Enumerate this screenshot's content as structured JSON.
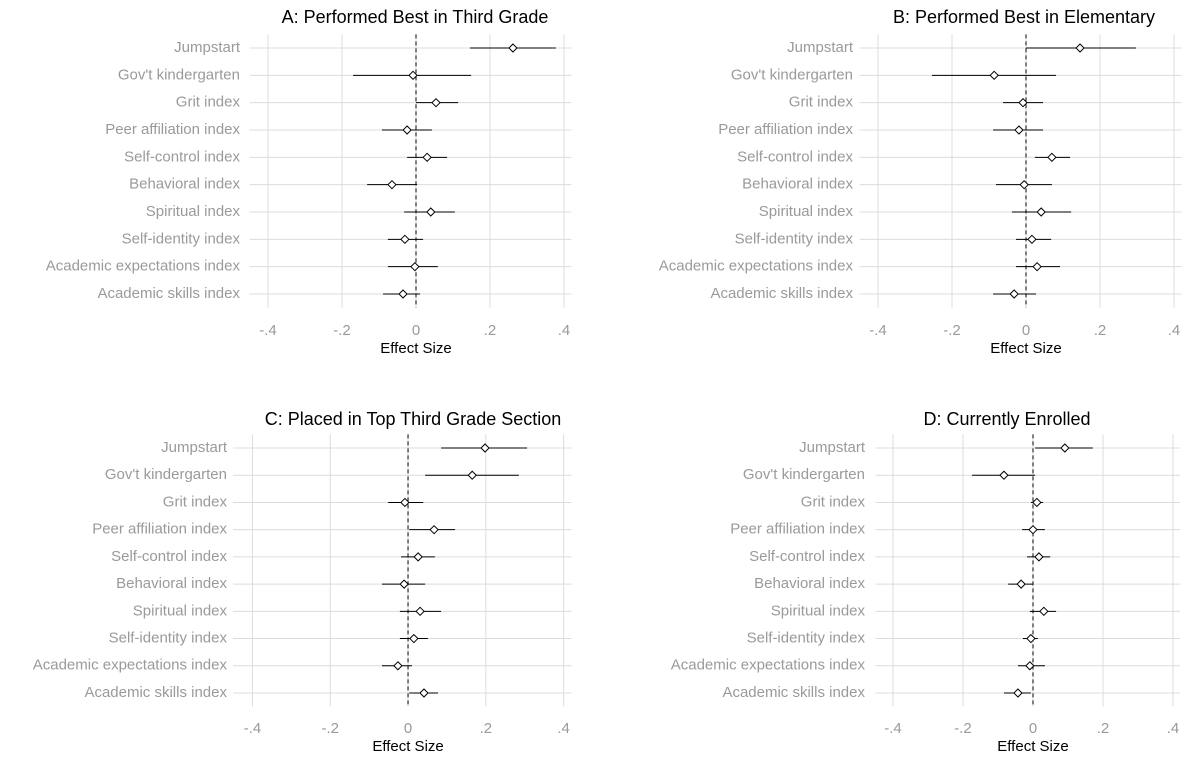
{
  "chart_data": [
    {
      "type": "coefplot",
      "title": "A: Performed Best in Third Grade",
      "xlabel": "Effect Size",
      "categories": [
        "Jumpstart",
        "Gov't kindergarten",
        "Grit index",
        "Peer affiliation index",
        "Self-control index",
        "Behavioral index",
        "Spiritual index",
        "Self-identity index",
        "Academic expectations index",
        "Academic skills index"
      ],
      "values": [
        0.262,
        -0.008,
        0.054,
        -0.024,
        0.03,
        -0.065,
        0.04,
        -0.03,
        -0.003,
        -0.035
      ],
      "lower": [
        0.146,
        -0.17,
        0.0,
        -0.092,
        -0.024,
        -0.132,
        -0.032,
        -0.076,
        -0.076,
        -0.089
      ],
      "upper": [
        0.378,
        0.149,
        0.114,
        0.043,
        0.084,
        0.003,
        0.105,
        0.019,
        0.059,
        0.011
      ],
      "xlim": [
        -0.45,
        0.42
      ],
      "xticks": [
        {
          "value": -0.4,
          "label": "-.4"
        },
        {
          "value": -0.2,
          "label": "-.2"
        },
        0,
        {
          "value": 0.2,
          "label": ".2"
        },
        {
          "value": 0.4,
          "label": ".4"
        }
      ],
      "refline": 0,
      "grid": true,
      "color": "#000000"
    },
    {
      "type": "coefplot",
      "title": "B: Performed Best in Elementary",
      "xlabel": "Effect Size",
      "categories": [
        "Jumpstart",
        "Gov't kindergarten",
        "Grit index",
        "Peer affiliation index",
        "Self-control index",
        "Behavioral index",
        "Spiritual index",
        "Self-identity index",
        "Academic expectations index",
        "Academic skills index"
      ],
      "values": [
        0.146,
        -0.086,
        -0.008,
        -0.019,
        0.07,
        -0.005,
        0.041,
        0.016,
        0.03,
        -0.032
      ],
      "lower": [
        0.0,
        -0.254,
        -0.062,
        -0.089,
        0.024,
        -0.081,
        -0.038,
        -0.027,
        -0.027,
        -0.089
      ],
      "upper": [
        0.297,
        0.081,
        0.046,
        0.046,
        0.119,
        0.07,
        0.122,
        0.068,
        0.092,
        0.027
      ],
      "xlim": [
        -0.45,
        0.42
      ],
      "xticks": [
        {
          "value": -0.4,
          "label": "-.4"
        },
        {
          "value": -0.2,
          "label": "-.2"
        },
        0,
        {
          "value": 0.2,
          "label": ".2"
        },
        {
          "value": 0.4,
          "label": ".4"
        }
      ],
      "refline": 0,
      "grid": true,
      "color": "#000000"
    },
    {
      "type": "coefplot",
      "title": "C: Placed in Top Third Grade Section",
      "xlabel": "Effect Size",
      "categories": [
        "Jumpstart",
        "Gov't kindergarten",
        "Grit index",
        "Peer affiliation index",
        "Self-control index",
        "Behavioral index",
        "Spiritual index",
        "Self-identity index",
        "Academic expectations index",
        "Academic skills index"
      ],
      "values": [
        0.198,
        0.165,
        -0.008,
        0.067,
        0.026,
        -0.01,
        0.031,
        0.015,
        -0.026,
        0.041
      ],
      "lower": [
        0.085,
        0.044,
        -0.051,
        0.003,
        -0.018,
        -0.067,
        -0.021,
        -0.021,
        -0.067,
        0.003
      ],
      "upper": [
        0.306,
        0.285,
        0.039,
        0.121,
        0.069,
        0.044,
        0.085,
        0.051,
        0.01,
        0.077
      ],
      "xlim": [
        -0.45,
        0.42
      ],
      "xticks": [
        {
          "value": -0.4,
          "label": "-.4"
        },
        {
          "value": -0.2,
          "label": "-.2"
        },
        0,
        {
          "value": 0.2,
          "label": ".2"
        },
        {
          "value": 0.4,
          "label": ".4"
        }
      ],
      "refline": 0,
      "grid": true,
      "color": "#000000"
    },
    {
      "type": "coefplot",
      "title": "D: Currently Enrolled",
      "xlabel": "Effect Size",
      "categories": [
        "Jumpstart",
        "Gov't kindergarten",
        "Grit index",
        "Peer affiliation index",
        "Self-control index",
        "Behavioral index",
        "Spiritual index",
        "Self-identity index",
        "Academic expectations index",
        "Academic skills index"
      ],
      "values": [
        0.091,
        -0.083,
        0.011,
        0.0,
        0.017,
        -0.034,
        0.031,
        -0.006,
        -0.009,
        -0.043
      ],
      "lower": [
        0.006,
        -0.174,
        -0.006,
        -0.031,
        -0.017,
        -0.071,
        -0.009,
        -0.029,
        -0.043,
        -0.083
      ],
      "upper": [
        0.171,
        0.006,
        0.029,
        0.034,
        0.049,
        0.0,
        0.066,
        0.014,
        0.034,
        -0.006
      ],
      "xlim": [
        -0.45,
        0.42
      ],
      "xticks": [
        {
          "value": -0.4,
          "label": "-.4"
        },
        {
          "value": -0.2,
          "label": "-.2"
        },
        0,
        {
          "value": 0.2,
          "label": ".2"
        },
        {
          "value": 0.4,
          "label": ".4"
        }
      ],
      "refline": 0,
      "grid": true,
      "color": "#000000"
    }
  ]
}
